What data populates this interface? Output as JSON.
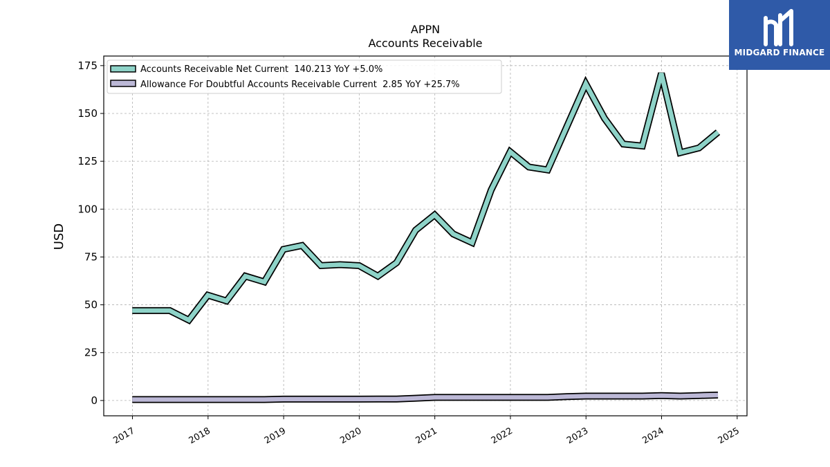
{
  "logo": {
    "text": "MIDGARD FINANCE",
    "icon": "midgard-finance-logo-icon",
    "color": "#2f5aa8"
  },
  "chart_data": {
    "type": "line",
    "title": "APPN",
    "subtitle": "Accounts Receivable",
    "ylabel": "USD",
    "xlabel": "",
    "ylim": [
      -8,
      180
    ],
    "xlim": [
      2016.62,
      2025.13
    ],
    "yticks": [
      0,
      25,
      50,
      75,
      100,
      125,
      150,
      175
    ],
    "xticks": [
      2017,
      2018,
      2019,
      2020,
      2021,
      2022,
      2023,
      2024,
      2025
    ],
    "xtick_labels": [
      "2017",
      "2018",
      "2019",
      "2020",
      "2021",
      "2022",
      "2023",
      "2024",
      "2025"
    ],
    "grid": true,
    "legend_position": "top-left",
    "x": [
      "2016-12-31",
      "2017-06-30",
      "2017-09-30",
      "2017-12-31",
      "2018-03-31",
      "2018-06-30",
      "2018-09-30",
      "2018-12-31",
      "2019-03-31",
      "2019-06-30",
      "2019-09-30",
      "2019-12-31",
      "2020-03-31",
      "2020-06-30",
      "2020-09-30",
      "2020-12-31",
      "2021-03-31",
      "2021-06-30",
      "2021-09-30",
      "2021-12-31",
      "2022-03-31",
      "2022-06-30",
      "2022-09-30",
      "2022-12-31",
      "2023-03-31",
      "2023-06-30",
      "2023-09-30",
      "2023-12-31",
      "2024-03-31",
      "2024-06-30",
      "2024-09-30"
    ],
    "series": [
      {
        "name": "Accounts Receivable Net Current",
        "legend_label": "Accounts Receivable Net Current  140.213 YoY +5.0%",
        "color": "#8ed3c8",
        "values": [
          47,
          47,
          42,
          55,
          52,
          65,
          62,
          79,
          81,
          70.5,
          71,
          70.5,
          65,
          72,
          89,
          97,
          87,
          82.5,
          110,
          130,
          122,
          120.5,
          143,
          165.5,
          147.5,
          134,
          133,
          171,
          129.5,
          132,
          140.2
        ]
      },
      {
        "name": "Allowance For Doubtful Accounts Receivable Current",
        "legend_label": "Allowance For Doubtful Accounts Receivable Current  2.85 YoY +25.7%",
        "color": "#bcb8d6",
        "values": [
          0.5,
          0.5,
          0.5,
          0.5,
          0.5,
          0.5,
          0.5,
          0.7,
          0.7,
          0.7,
          0.7,
          0.7,
          0.8,
          0.8,
          1.2,
          1.6,
          1.6,
          1.6,
          1.6,
          1.6,
          1.6,
          1.6,
          2.0,
          2.3,
          2.3,
          2.3,
          2.3,
          2.6,
          2.3,
          2.6,
          2.85
        ]
      }
    ]
  }
}
